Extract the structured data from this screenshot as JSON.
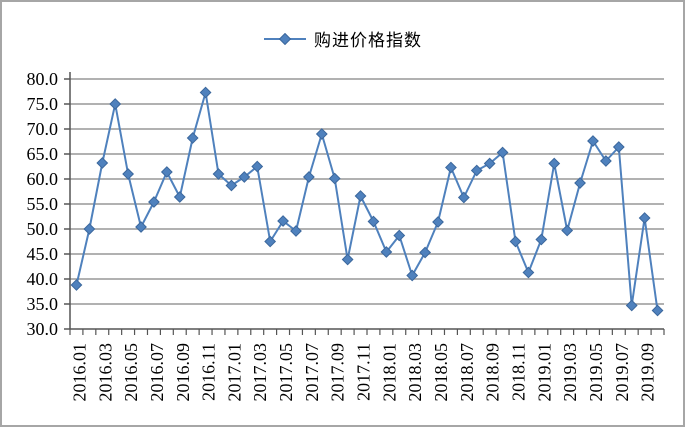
{
  "chart_data": {
    "type": "line",
    "title": "",
    "legend_position": "top",
    "marker": "diamond",
    "grid": true,
    "series": [
      {
        "name": "购进价格指数",
        "color": "#4F81BD",
        "values": [
          38.8,
          50.0,
          63.2,
          75.0,
          61.0,
          50.4,
          55.4,
          61.4,
          56.4,
          68.2,
          77.3,
          61.0,
          58.7,
          60.4,
          62.5,
          47.5,
          51.6,
          49.6,
          60.4,
          69.0,
          60.1,
          43.9,
          56.6,
          51.5,
          45.4,
          48.7,
          40.7,
          45.3,
          51.4,
          62.3,
          56.3,
          61.7,
          63.1,
          65.3,
          47.5,
          41.3,
          47.9,
          63.1,
          49.7,
          59.2,
          67.6,
          63.6,
          66.4,
          34.7,
          52.2,
          33.7
        ]
      }
    ],
    "categories": [
      "2016.01",
      "2016.02",
      "2016.03",
      "2016.04",
      "2016.05",
      "2016.06",
      "2016.07",
      "2016.08",
      "2016.09",
      "2016.10",
      "2016.11",
      "2016.12",
      "2017.01",
      "2017.02",
      "2017.03",
      "2017.04",
      "2017.05",
      "2017.06",
      "2017.07",
      "2017.08",
      "2017.09",
      "2017.10",
      "2017.11",
      "2017.12",
      "2018.01",
      "2018.02",
      "2018.03",
      "2018.04",
      "2018.05",
      "2018.06",
      "2018.07",
      "2018.08",
      "2018.09",
      "2018.10",
      "2018.11",
      "2018.12",
      "2019.01",
      "2019.02",
      "2019.03",
      "2019.04",
      "2019.05",
      "2019.06",
      "2019.07",
      "2019.08",
      "2019.09",
      "2019.10"
    ],
    "x_tick_label_interval": 2,
    "visible_x_labels": [
      "2016.01",
      "2016.03",
      "2016.05",
      "2016.07",
      "2016.09",
      "2016.11",
      "2017.01",
      "2017.03",
      "2017.05",
      "2017.07",
      "2017.09",
      "2017.11",
      "2018.01",
      "2018.03",
      "2018.05",
      "2018.07",
      "2018.09",
      "2018.11",
      "2019.01",
      "2019.03",
      "2019.05",
      "2019.07",
      "2019.09"
    ],
    "ylim": [
      30,
      80
    ],
    "ytick_step": 5,
    "ytick_labels": [
      "80.0",
      "75.0",
      "70.0",
      "65.0",
      "60.0",
      "55.0",
      "50.0",
      "45.0",
      "40.0",
      "35.0",
      "30.0"
    ],
    "colors": {
      "series_line": "#4F81BD",
      "marker_fill": "#4F81BD",
      "marker_edge": "#3B679C",
      "gridline": "#979797",
      "axis": "#555555",
      "frame_border": "#a6a6a6",
      "background": "#ffffff",
      "label_text": "#000000"
    }
  }
}
